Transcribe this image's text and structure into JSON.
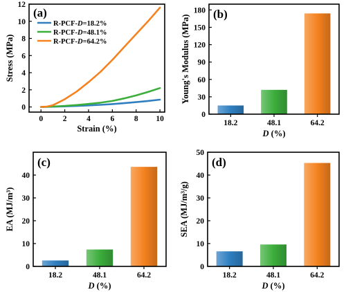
{
  "chart_data": [
    {
      "panel": "(a)",
      "type": "line",
      "xlabel": "Strain (%)",
      "ylabel": "Stress (MPa)",
      "xlim": [
        -1,
        10.4
      ],
      "ylim": [
        -0.6,
        12
      ],
      "xticks": [
        0,
        2,
        4,
        6,
        8,
        10
      ],
      "yticks": [
        0,
        2,
        4,
        6,
        8,
        10,
        12
      ],
      "legend_position": "top-left",
      "series": [
        {
          "name": "R-PCF-D=18.2%",
          "label_prefix": "R-PCF-",
          "label_var": "D",
          "label_suffix": "=18.2%",
          "color": "#2f7fc1",
          "x": [
            0,
            1,
            2,
            3,
            4,
            5,
            6,
            7,
            8,
            9,
            10
          ],
          "y": [
            0,
            0.03,
            0.07,
            0.12,
            0.18,
            0.25,
            0.34,
            0.44,
            0.56,
            0.7,
            0.85
          ]
        },
        {
          "name": "R-PCF-D=48.1%",
          "label_prefix": "R-PCF-",
          "label_var": "D",
          "label_suffix": "=48.1%",
          "color": "#3cae3c",
          "x": [
            0,
            1,
            2,
            3,
            4,
            5,
            6,
            7,
            8,
            9,
            10
          ],
          "y": [
            0,
            0.05,
            0.12,
            0.22,
            0.35,
            0.5,
            0.7,
            1.0,
            1.35,
            1.75,
            2.2
          ]
        },
        {
          "name": "R-PCF-D=64.2%",
          "label_prefix": "R-PCF-",
          "label_var": "D",
          "label_suffix": "=64.2%",
          "color": "#f5821f",
          "x": [
            0,
            0.5,
            1,
            1.5,
            2,
            3,
            4,
            5,
            6,
            7,
            8,
            9,
            10
          ],
          "y": [
            0,
            0.05,
            0.2,
            0.55,
            0.9,
            1.8,
            2.9,
            4.1,
            5.5,
            7.0,
            8.5,
            10.0,
            11.6
          ]
        }
      ]
    },
    {
      "panel": "(b)",
      "type": "bar",
      "xlabel_var": "D",
      "xlabel_unit": " (%)",
      "ylabel": "Young's Modulus (MPa)",
      "categories": [
        "18.2",
        "48.1",
        "64.2"
      ],
      "values": [
        15,
        42,
        174
      ],
      "colors": [
        "#2f7fc1",
        "#3cae3c",
        "#f5821f"
      ],
      "ylim": [
        0,
        190
      ],
      "yticks": [
        0,
        30,
        60,
        90,
        120,
        150,
        180
      ]
    },
    {
      "panel": "(c)",
      "type": "bar",
      "xlabel_var": "D",
      "xlabel_unit": " (%)",
      "ylabel": "EA (MJ/m³)",
      "categories": [
        "18.2",
        "48.1",
        "64.2"
      ],
      "values": [
        2.6,
        7.4,
        43.6
      ],
      "colors": [
        "#2f7fc1",
        "#3cae3c",
        "#f5821f"
      ],
      "ylim": [
        0,
        50
      ],
      "yticks": [
        0,
        10,
        20,
        30,
        40
      ]
    },
    {
      "panel": "(d)",
      "type": "bar",
      "xlabel_var": "D",
      "xlabel_unit": " (%)",
      "ylabel": "SEA (MJ/m³/g)",
      "categories": [
        "18.2",
        "48.1",
        "64.2"
      ],
      "values": [
        6.6,
        9.6,
        45.3
      ],
      "colors": [
        "#2f7fc1",
        "#3cae3c",
        "#f5821f"
      ],
      "ylim": [
        0,
        50
      ],
      "yticks": [
        0,
        10,
        20,
        30,
        40,
        50
      ]
    }
  ]
}
